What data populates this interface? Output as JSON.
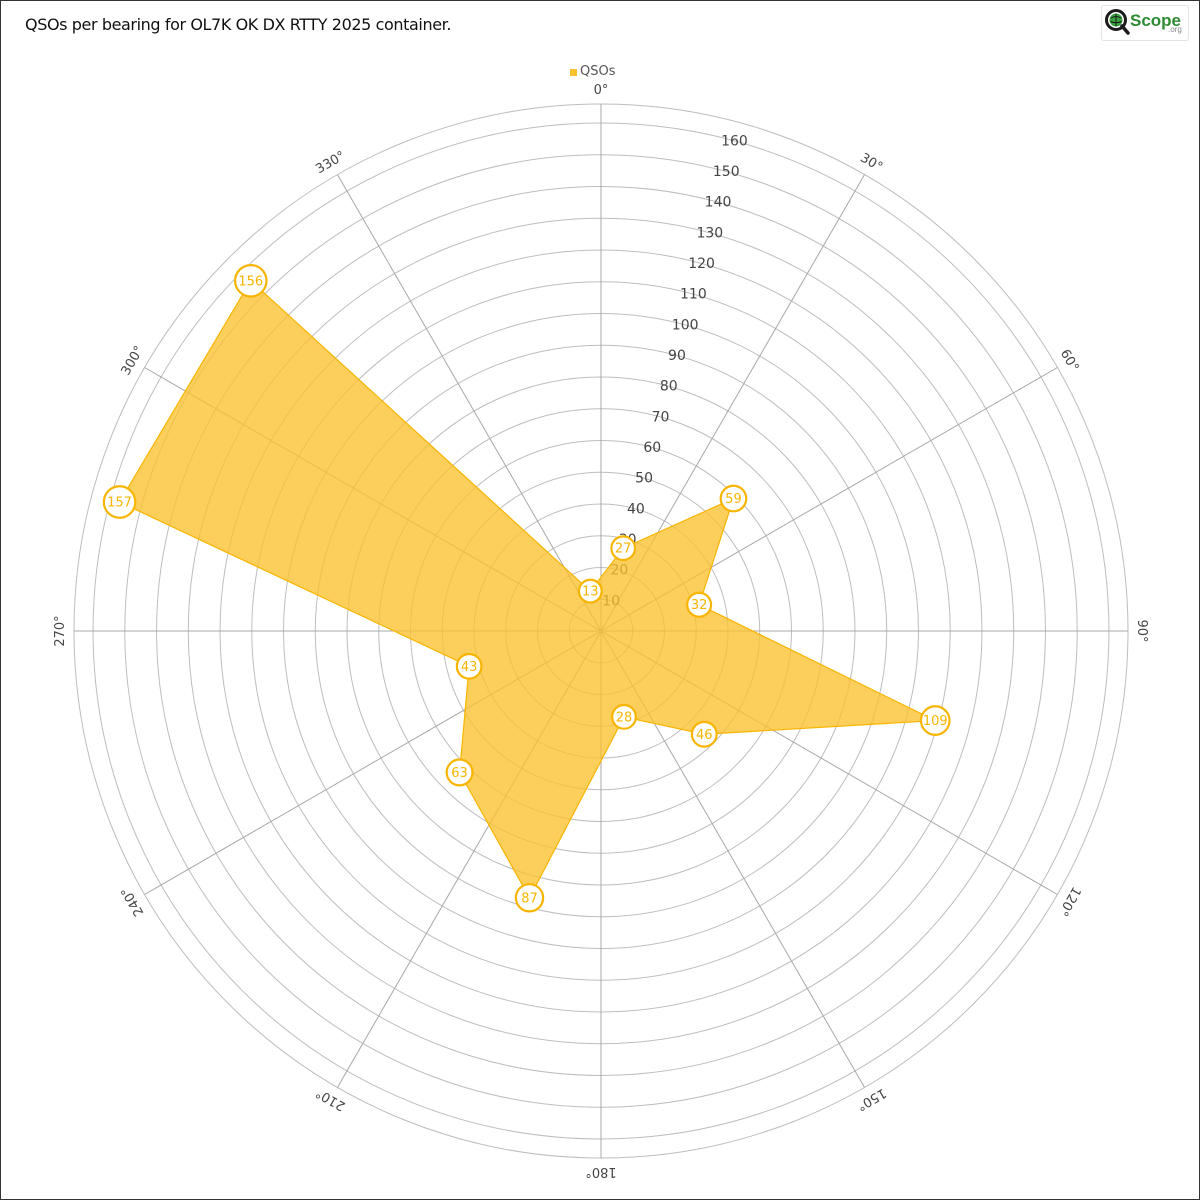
{
  "title": "QSOs per bearing for OL7K OK DX RTTY 2025 container.",
  "logo": {
    "text": "Scope",
    "sub": ".org"
  },
  "colors": {
    "fill": "#fbc02d",
    "stroke": "#f7b500",
    "grid": "#bdbdbd",
    "spoke": "#a8a8a8"
  },
  "chart_data": {
    "type": "radar",
    "legend": {
      "label": "QSOs",
      "position": "top-center"
    },
    "bearings": [
      "0°",
      "30°",
      "60°",
      "90°",
      "120°",
      "150°",
      "180°",
      "210°",
      "240°",
      "270°",
      "300°",
      "330°"
    ],
    "point_bearings": [
      15,
      45,
      75,
      105,
      135,
      165,
      195,
      225,
      255,
      285,
      315,
      345
    ],
    "series": [
      {
        "name": "QSOs",
        "values": [
          27,
          59,
          32,
          109,
          46,
          28,
          87,
          63,
          43,
          157,
          156,
          13
        ]
      }
    ],
    "r_ticks": [
      10,
      20,
      30,
      40,
      50,
      60,
      70,
      80,
      90,
      100,
      110,
      120,
      130,
      140,
      150,
      160
    ],
    "r_max": 166
  }
}
